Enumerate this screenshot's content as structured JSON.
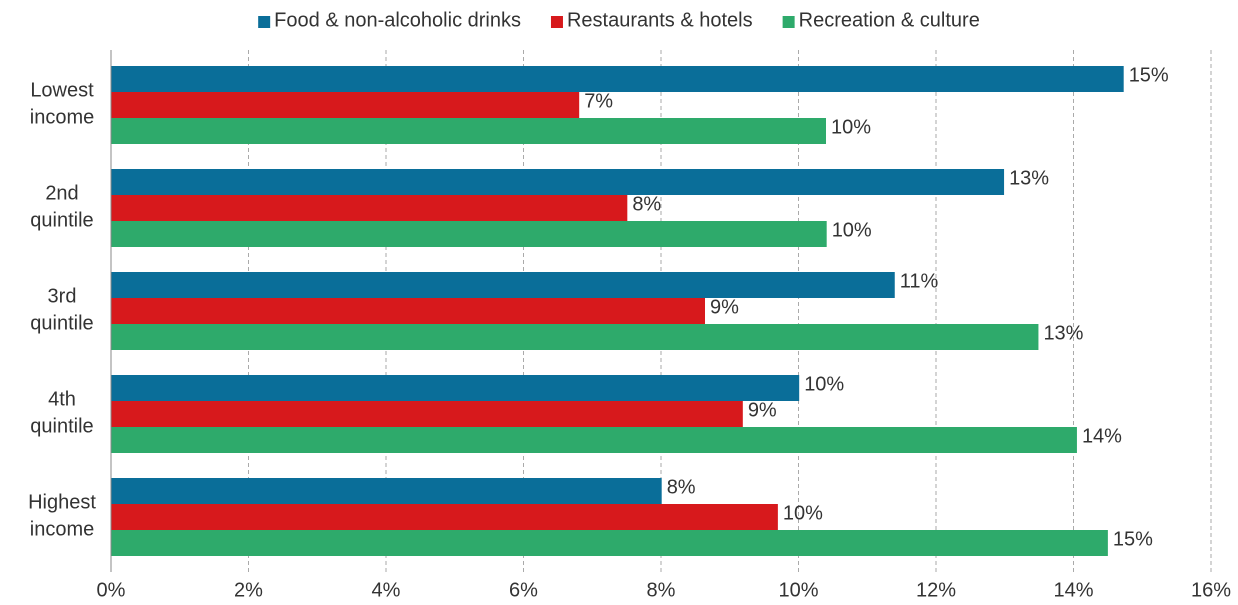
{
  "chart_data": {
    "type": "bar",
    "orientation": "horizontal",
    "categories": [
      [
        "Lowest",
        "income"
      ],
      [
        "2nd",
        "quintile"
      ],
      [
        "3rd",
        "quintile"
      ],
      [
        "4th",
        "quintile"
      ],
      [
        "Highest",
        "income"
      ]
    ],
    "series": [
      {
        "name": "Food & non-alcoholic drinks",
        "color": "#0a6e99",
        "values": [
          14.73,
          12.99,
          11.4,
          10.01,
          8.01
        ],
        "value_labels": [
          "15%",
          "13%",
          "11%",
          "10%",
          "8%"
        ]
      },
      {
        "name": "Restaurants & hotels",
        "color": "#d7191c",
        "values": [
          6.81,
          7.51,
          8.64,
          9.19,
          9.7
        ],
        "value_labels": [
          "7%",
          "8%",
          "9%",
          "9%",
          "10%"
        ]
      },
      {
        "name": "Recreation & culture",
        "color": "#2eaa6b",
        "values": [
          10.4,
          10.41,
          13.49,
          14.05,
          14.5
        ],
        "value_labels": [
          "10%",
          "10%",
          "13%",
          "14%",
          "15%"
        ]
      }
    ],
    "xlim": [
      0,
      16
    ],
    "xticks": [
      {
        "value": 0,
        "label": "0%"
      },
      {
        "value": 2,
        "label": "2%"
      },
      {
        "value": 4,
        "label": "4%"
      },
      {
        "value": 6,
        "label": "6%"
      },
      {
        "value": 8,
        "label": "8%"
      },
      {
        "value": 10,
        "label": "10%"
      },
      {
        "value": 12,
        "label": "12%"
      },
      {
        "value": 14,
        "label": "14%"
      },
      {
        "value": 16,
        "label": "16%"
      }
    ],
    "grid": true,
    "legend": "top"
  }
}
